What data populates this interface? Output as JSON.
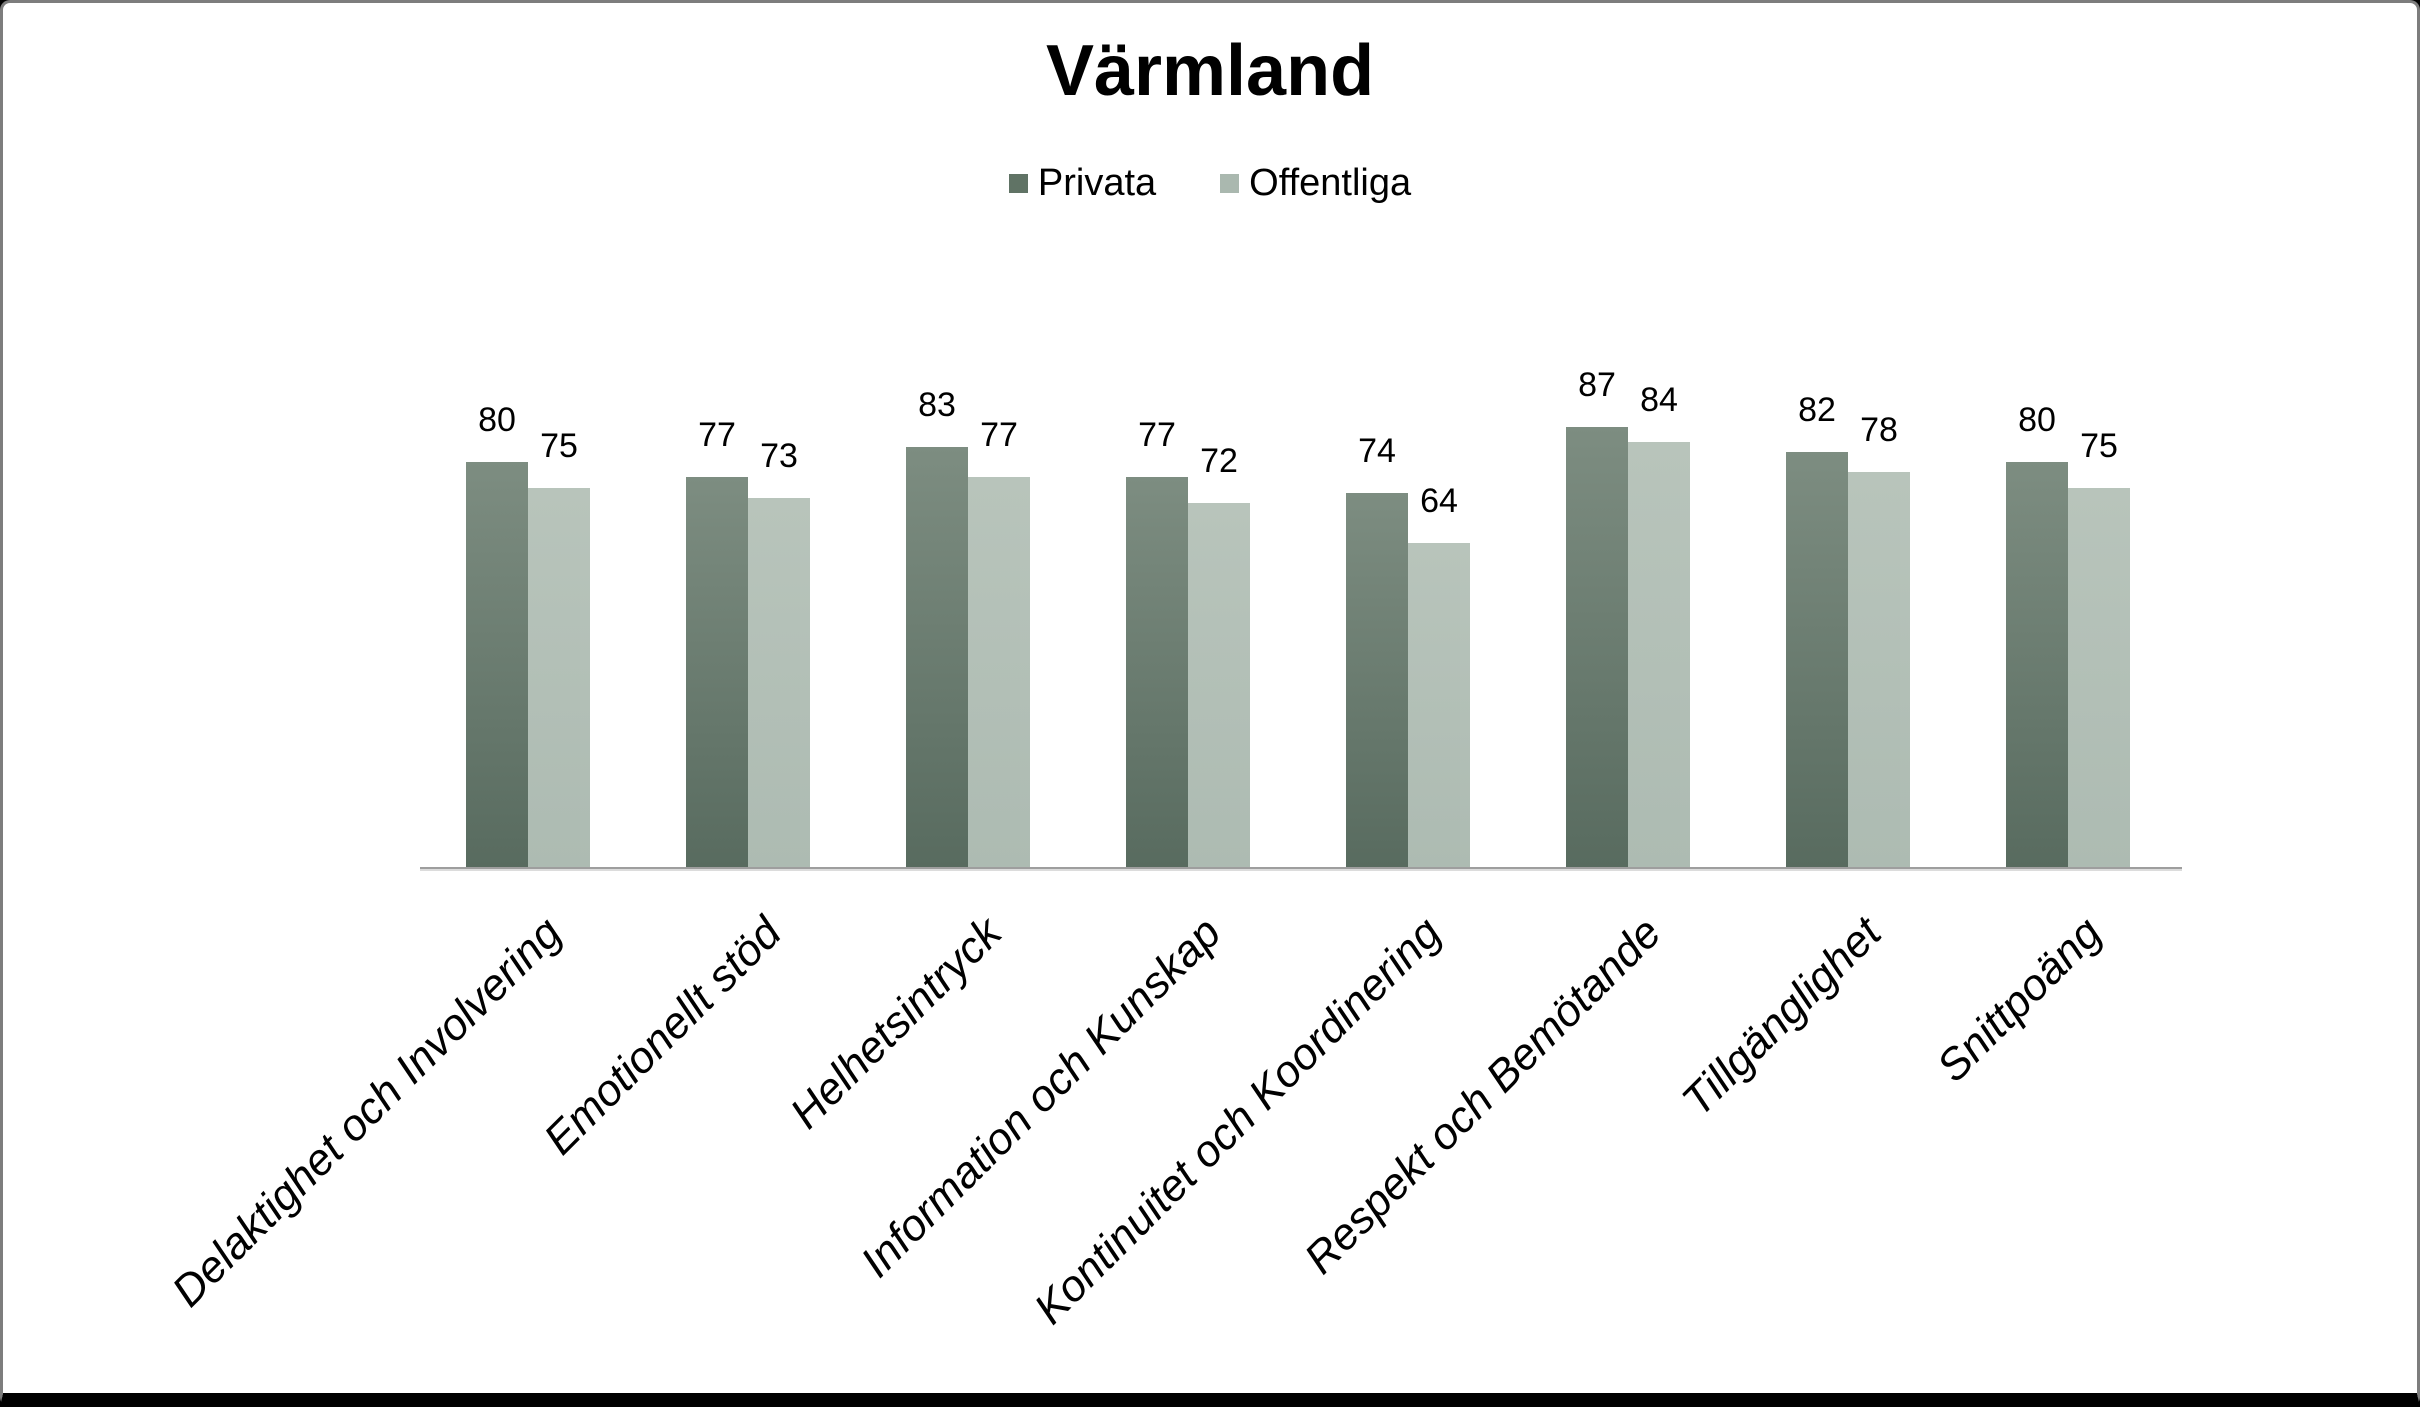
{
  "title": "Värmland",
  "legend": {
    "items": [
      {
        "label": "Privata",
        "color": "#607365"
      },
      {
        "label": "Offentliga",
        "color": "#aab8af"
      }
    ]
  },
  "chart_data": {
    "type": "bar",
    "title": "Värmland",
    "categories": [
      "Delaktighet och Involvering",
      "Emotionellt stöd",
      "Helhetsintryck",
      "Information och Kunskap",
      "Kontinuitet och Koordinering",
      "Respekt och Bemötande",
      "Tillgänglighet",
      "Snittpoäng"
    ],
    "series": [
      {
        "name": "Privata",
        "values": [
          80,
          77,
          83,
          77,
          74,
          87,
          82,
          80
        ],
        "color_top": "#7d8d81",
        "color_bottom": "#586b5f"
      },
      {
        "name": "Offentliga",
        "values": [
          75,
          73,
          77,
          72,
          64,
          84,
          78,
          75
        ],
        "color_top": "#b8c4bb",
        "color_bottom": "#adbbb2"
      }
    ],
    "ylim": [
      0,
      100
    ],
    "grid": false,
    "legend_position": "top",
    "data_labels": true,
    "category_label_rotation_deg": -45,
    "axis_line_color": "#9e9e9e"
  }
}
